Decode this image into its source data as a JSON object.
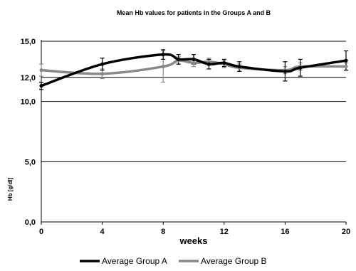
{
  "chart_data": {
    "type": "line",
    "title": "Mean Hb values for patients in the Groups A and B",
    "xlabel": "weeks",
    "ylabel": "Hb [g/dl]",
    "xlim": [
      0,
      20
    ],
    "ylim": [
      0,
      15
    ],
    "x_ticks": [
      {
        "value": 0,
        "label": "0"
      },
      {
        "value": 4,
        "label": "4"
      },
      {
        "value": 8,
        "label": "8"
      },
      {
        "value": 12,
        "label": "12"
      },
      {
        "value": 16,
        "label": "16"
      },
      {
        "value": 20,
        "label": "20"
      }
    ],
    "y_ticks": [
      {
        "value": 0,
        "label": "0,0"
      },
      {
        "value": 5,
        "label": "5,0"
      },
      {
        "value": 10,
        "label": "10,0"
      },
      {
        "value": 12,
        "label": "12,0"
      },
      {
        "value": 15,
        "label": "15,0"
      }
    ],
    "grid": "horizontal",
    "legend_position": "bottom",
    "series": [
      {
        "name": "Average Group A",
        "color": "#000000",
        "x": [
          0,
          4,
          8,
          9,
          10,
          11,
          12,
          13,
          16,
          17,
          20
        ],
        "y": [
          11.3,
          13.1,
          13.9,
          13.5,
          13.5,
          13.1,
          13.2,
          12.9,
          12.5,
          12.8,
          13.4
        ],
        "err": [
          0.3,
          0.5,
          0.4,
          0.4,
          0.4,
          0.4,
          0.3,
          0.4,
          0.8,
          0.7,
          0.8
        ]
      },
      {
        "name": "Average Group B",
        "color": "#888888",
        "x": [
          0,
          4,
          8,
          9,
          10,
          11,
          12,
          13,
          16,
          17,
          20
        ],
        "y": [
          12.6,
          12.3,
          12.9,
          13.4,
          13.2,
          13.3,
          13.1,
          12.8,
          12.6,
          12.9,
          12.9
        ],
        "err": [
          0.5,
          0.4,
          1.3,
          0.3,
          0.3,
          0.3,
          0.3,
          0.3,
          0.3,
          0.3,
          0.3
        ]
      }
    ]
  }
}
